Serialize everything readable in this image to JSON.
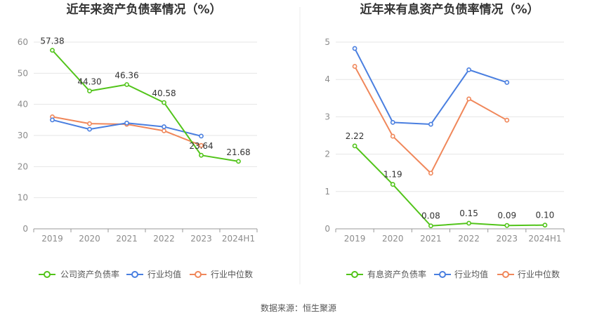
{
  "source_text": "数据来源：恒生聚源",
  "chart_data": [
    {
      "type": "line",
      "title": "近年来资产负债率情况（%）",
      "categories": [
        "2019",
        "2020",
        "2021",
        "2022",
        "2023",
        "2024H1"
      ],
      "ylim": [
        0,
        60
      ],
      "yticks": [
        0,
        10,
        20,
        30,
        40,
        50,
        60
      ],
      "grid": true,
      "legend_position": "bottom",
      "series": [
        {
          "name": "公司资产负债率",
          "color": "#52c41a",
          "values": [
            57.38,
            44.3,
            46.36,
            40.58,
            23.64,
            21.68
          ],
          "labels": [
            "57.38",
            "44.30",
            "46.36",
            "40.58",
            "23.64",
            "21.68"
          ]
        },
        {
          "name": "行业均值",
          "color": "#4a7fe0",
          "values": [
            35.0,
            32.0,
            34.0,
            32.8,
            29.8,
            null
          ]
        },
        {
          "name": "行业中位数",
          "color": "#f0875a",
          "values": [
            36.0,
            33.8,
            33.6,
            31.5,
            26.8,
            null
          ]
        }
      ]
    },
    {
      "type": "line",
      "title": "近年来有息资产负债率情况（%）",
      "categories": [
        "2019",
        "2020",
        "2021",
        "2022",
        "2023",
        "2024H1"
      ],
      "ylim": [
        0,
        5
      ],
      "yticks": [
        0,
        1,
        2,
        3,
        4,
        5
      ],
      "grid": true,
      "legend_position": "bottom",
      "series": [
        {
          "name": "有息资产负债率",
          "color": "#52c41a",
          "values": [
            2.22,
            1.19,
            0.08,
            0.15,
            0.09,
            0.1
          ],
          "labels": [
            "2.22",
            "1.19",
            "0.08",
            "0.15",
            "0.09",
            "0.10"
          ]
        },
        {
          "name": "行业均值",
          "color": "#4a7fe0",
          "values": [
            4.83,
            2.85,
            2.8,
            4.26,
            3.92,
            null
          ]
        },
        {
          "name": "行业中位数",
          "color": "#f0875a",
          "values": [
            4.35,
            2.48,
            1.49,
            3.48,
            2.91,
            null
          ]
        }
      ]
    }
  ]
}
